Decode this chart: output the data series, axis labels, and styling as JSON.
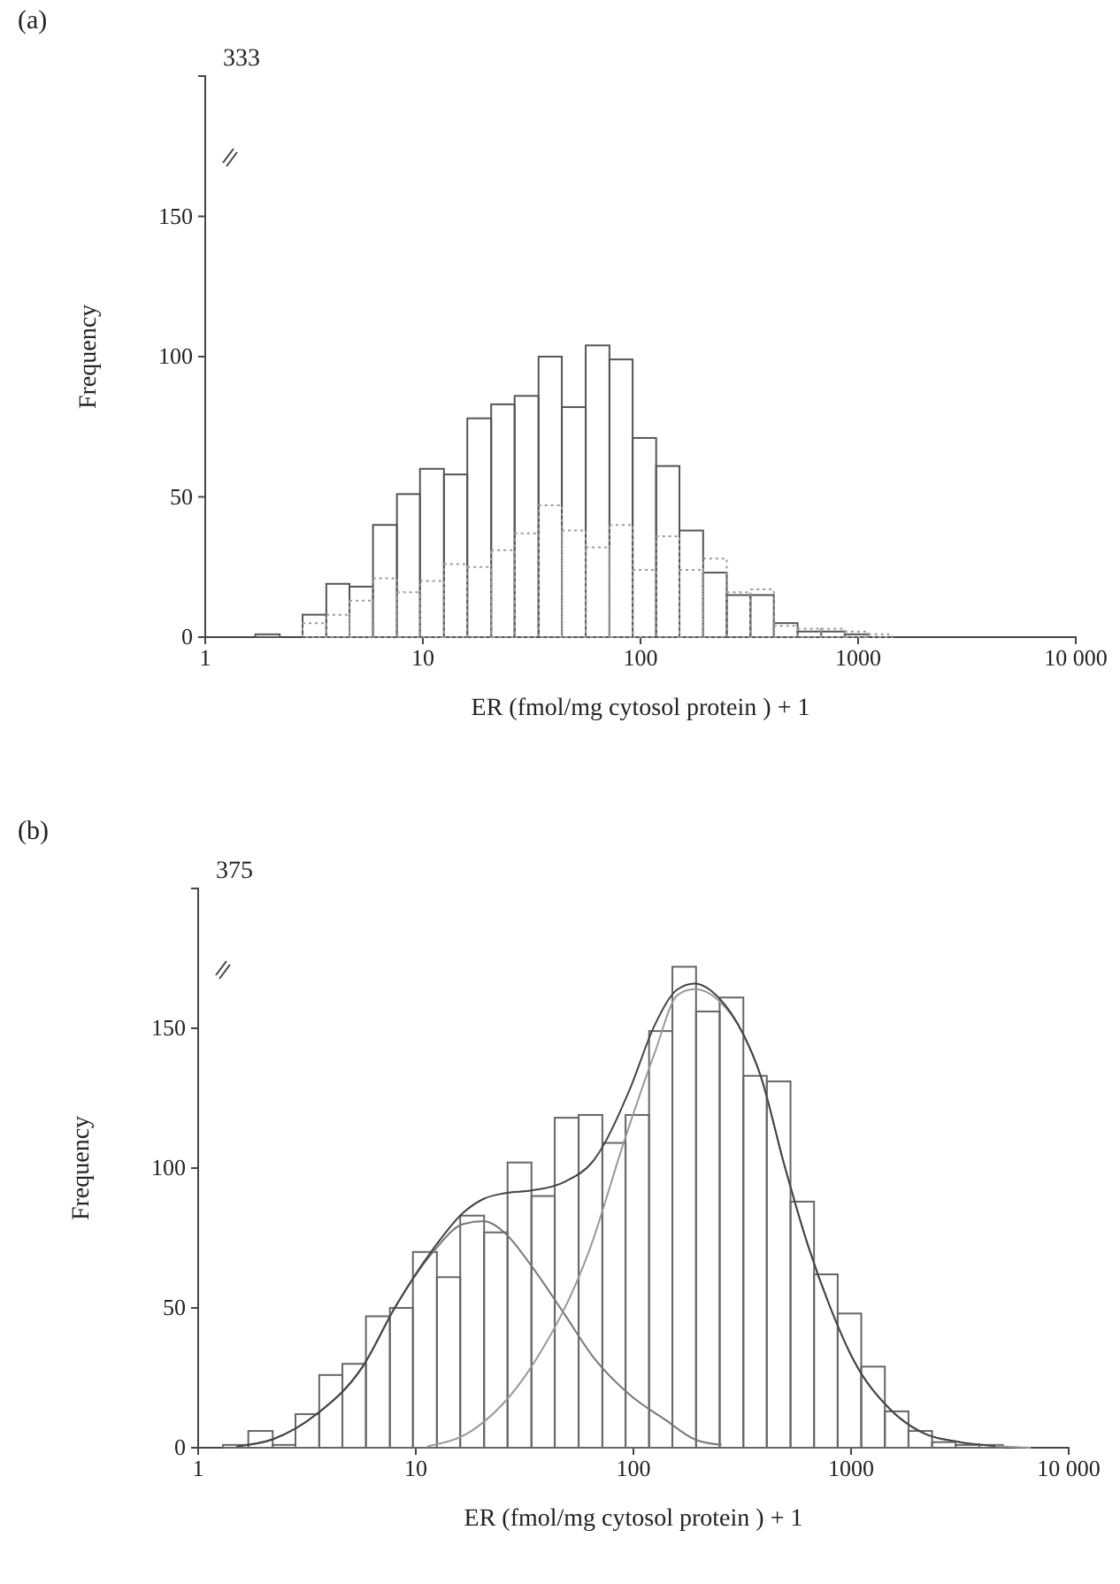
{
  "chart_data": [
    {
      "type": "histogram",
      "title": "(a)",
      "xlabel": "ER (fmol/mg cytosol protein ) + 1",
      "ylabel": "Frequency",
      "log": "x",
      "bins": [
        1.7,
        2.2,
        2.8,
        3.6,
        4.6,
        5.9,
        7.6,
        9.7,
        12.5,
        16,
        20.6,
        26.4,
        34,
        43.5,
        56,
        72,
        92,
        118,
        151,
        194,
        249,
        320,
        410,
        527,
        676,
        868,
        1114,
        1430
      ],
      "series": [
        {
          "color": "#555555",
          "line_style": "solid",
          "values": [
            1,
            0,
            8,
            19,
            18,
            40,
            51,
            60,
            58,
            78,
            83,
            86,
            100,
            82,
            104,
            99,
            71,
            61,
            38,
            23,
            15,
            15,
            5,
            2,
            2,
            1,
            0
          ]
        },
        {
          "color": "#9a9a9a",
          "line_style": "dotted",
          "values": [
            0,
            0,
            5,
            8,
            13,
            21,
            16,
            20,
            26,
            25,
            31,
            37,
            47,
            38,
            32,
            40,
            24,
            36,
            24,
            28,
            16,
            17,
            4,
            3,
            3,
            2,
            1
          ]
        }
      ],
      "xlim": [
        1,
        10000
      ],
      "xticks": [
        1,
        10,
        100,
        1000,
        {
          "value": 10000,
          "label": "10 000"
        }
      ],
      "ylim": [
        0,
        200
      ],
      "yticks": [
        0,
        50,
        100,
        150
      ],
      "annotations": [
        "333"
      ]
    },
    {
      "type": "histogram",
      "title": "(b)",
      "xlabel": "ER  (fmol/mg cytosol protein  ) + 1",
      "ylabel": "Frequency",
      "log": "x",
      "bins": [
        1.3,
        1.7,
        2.2,
        2.8,
        3.6,
        4.6,
        5.9,
        7.6,
        9.7,
        12.5,
        16,
        20.6,
        26.4,
        34,
        43.5,
        56,
        72,
        92,
        118,
        151,
        194,
        249,
        320,
        410,
        527,
        676,
        868,
        1114,
        1430,
        1836,
        2357,
        3025,
        3883,
        4985
      ],
      "series": [
        {
          "color": "#666666",
          "line_style": "solid",
          "values": [
            1,
            6,
            1,
            12,
            26,
            30,
            47,
            50,
            70,
            61,
            83,
            77,
            102,
            90,
            118,
            119,
            109,
            119,
            149,
            172,
            156,
            161,
            133,
            131,
            88,
            62,
            48,
            29,
            13,
            6,
            2,
            1,
            1
          ]
        },
        {
          "type": "line",
          "color": "#777777",
          "line_style": "solid",
          "x": [
            1.5,
            2.2,
            3.5,
            5.7,
            8,
            12,
            16.5,
            20.5,
            25.5,
            34,
            48,
            66,
            96,
            140,
            191,
            254
          ],
          "values": [
            0.5,
            3,
            12,
            29,
            50,
            70,
            80,
            81,
            77,
            65,
            48,
            32,
            19,
            10,
            3,
            1
          ]
        },
        {
          "type": "line",
          "color": "#999999",
          "line_style": "solid",
          "x": [
            11.3,
            18,
            34,
            63,
            91,
            125,
            160,
            191,
            246,
            319,
            384,
            494,
            630,
            804,
            1032,
            1500,
            2180,
            3170,
            4600,
            6700
          ],
          "values": [
            0.5,
            6,
            29,
            71,
            110,
            141,
            162,
            164,
            160,
            148,
            133,
            101,
            73,
            50,
            31,
            14,
            5,
            2,
            0.6,
            0
          ]
        },
        {
          "type": "line",
          "color": "#444444",
          "line_style": "solid",
          "x": [
            1.5,
            2.2,
            3.5,
            5.7,
            8,
            12,
            16.5,
            20.5,
            25.5,
            34,
            48,
            66,
            96,
            125,
            160,
            191,
            246,
            319,
            384,
            494,
            630,
            804,
            1032,
            1500,
            2180,
            3170,
            4600
          ],
          "values": [
            0.5,
            3,
            12,
            29,
            50,
            71,
            84,
            89,
            91,
            92,
            95,
            103,
            128,
            151,
            164,
            166,
            161,
            148,
            133,
            101,
            73,
            50,
            31,
            14,
            5,
            2,
            0.6
          ]
        }
      ],
      "xlim": [
        1,
        10000
      ],
      "xticks": [
        1,
        10,
        100,
        1000,
        {
          "value": 10000,
          "label": "10 000"
        }
      ],
      "ylim": [
        0,
        200
      ],
      "yticks": [
        0,
        50,
        100,
        150
      ],
      "annotations": [
        "375"
      ]
    }
  ]
}
